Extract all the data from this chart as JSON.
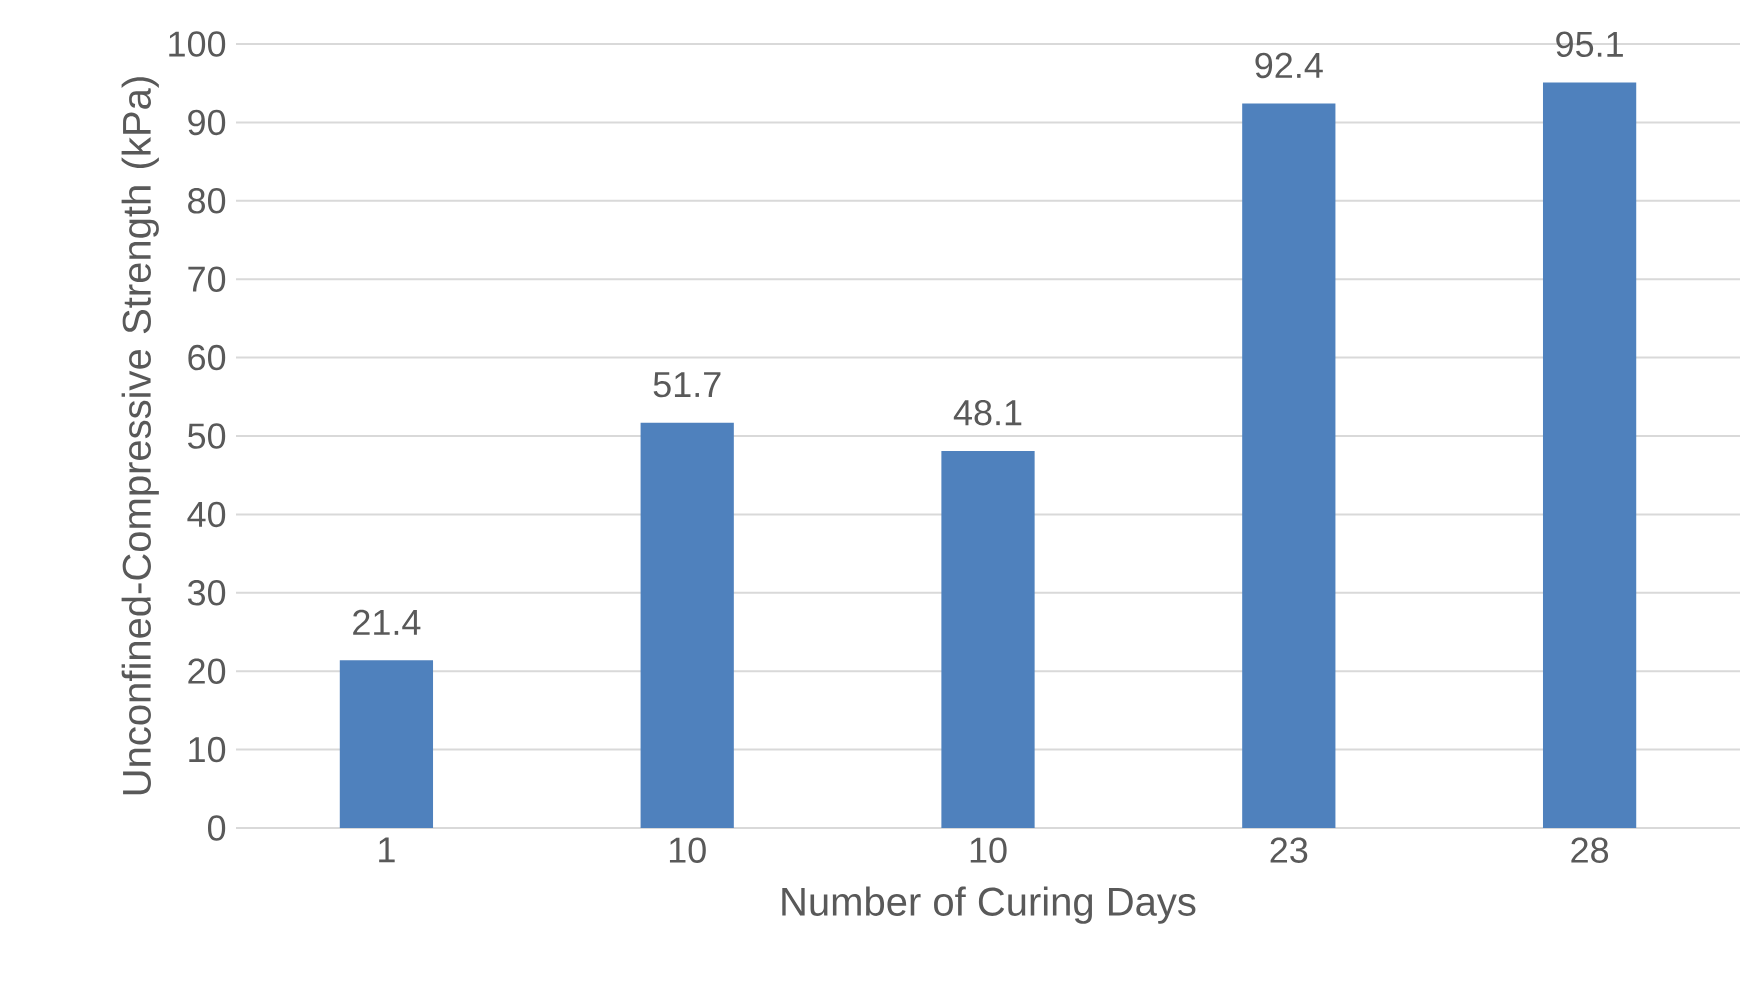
{
  "chart_data": {
    "type": "bar",
    "xlabel": "Number of Curing Days",
    "ylabel": "Unconfined-Compressive Strength (kPa)",
    "categories": [
      "1",
      "10",
      "10",
      "23",
      "28"
    ],
    "values": [
      21.4,
      51.7,
      48.1,
      92.4,
      95.1
    ],
    "color": "#4f81bd",
    "ylim": [
      0,
      100
    ],
    "yticks": [
      0,
      10,
      20,
      30,
      40,
      50,
      60,
      70,
      80,
      90,
      100
    ],
    "grid": "y",
    "data_labels": true
  }
}
